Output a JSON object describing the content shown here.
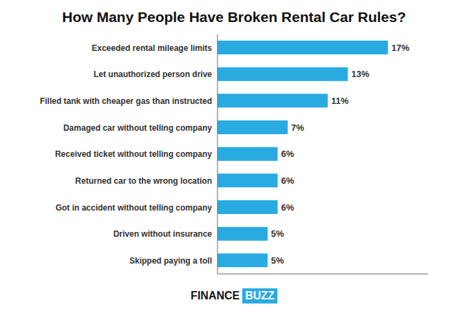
{
  "chart_data": {
    "type": "bar",
    "orientation": "horizontal",
    "title": "How Many People Have Broken Rental Car Rules?",
    "categories": [
      "Skipped paying a toll",
      "Driven without insurance",
      "Got in accident without telling company",
      "Returned car to the wrong location",
      "Received ticket without telling company",
      "Damaged car without telling company",
      "Filled tank with cheaper gas than instructed",
      "Let unauthorized person drive",
      "Exceeded rental mileage limits"
    ],
    "values": [
      5,
      5,
      6,
      6,
      6,
      7,
      11,
      13,
      17
    ],
    "value_labels": [
      "5%",
      "5%",
      "6%",
      "6%",
      "6%",
      "7%",
      "11%",
      "13%",
      "17%"
    ],
    "data_labels": true,
    "color": "#29ABE2",
    "xlim": [
      0,
      21
    ],
    "tick_labels": "y",
    "grid": false,
    "annotations": [
      "FINANCE",
      "BUZZ"
    ]
  }
}
